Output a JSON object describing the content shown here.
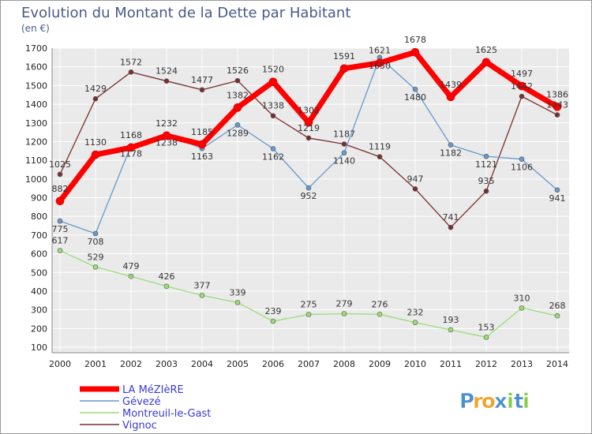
{
  "chart_data": {
    "type": "line",
    "title": "Evolution du Montant de la Dette par Habitant",
    "subtitle": "(en €)",
    "xlabel": "",
    "ylabel": "",
    "x": [
      2000,
      2001,
      2002,
      2003,
      2004,
      2005,
      2006,
      2007,
      2008,
      2009,
      2010,
      2011,
      2012,
      2013,
      2014
    ],
    "ylim": [
      100,
      1700
    ],
    "yticks": [
      100,
      200,
      300,
      400,
      500,
      600,
      700,
      800,
      900,
      1000,
      1100,
      1200,
      1300,
      1400,
      1500,
      1600,
      1700
    ],
    "grid": true,
    "legend_position": "bottom-left",
    "series": [
      {
        "name": "Vignoc",
        "color": "#7a2e2e",
        "values": [
          1025,
          1429,
          1572,
          1524,
          1477,
          1526,
          1338,
          1219,
          1187,
          1119,
          947,
          741,
          935,
          1442,
          1343
        ]
      },
      {
        "name": "Montreuil-le-Gast",
        "color": "#99dd77",
        "values": [
          617,
          529,
          479,
          426,
          377,
          339,
          239,
          275,
          279,
          276,
          232,
          193,
          153,
          310,
          268
        ]
      },
      {
        "name": "Gévezé",
        "color": "#6699cc",
        "values": [
          775,
          708,
          1178,
          1238,
          1163,
          1289,
          1162,
          952,
          1140,
          1650,
          1480,
          1182,
          1121,
          1106,
          941
        ]
      },
      {
        "name": "LA MéZIèRE",
        "color": "#ff0000",
        "values": [
          882,
          1130,
          1168,
          1232,
          1185,
          1382,
          1520,
          1302,
          1591,
          1621,
          1678,
          1439,
          1625,
          1497,
          1386
        ]
      }
    ],
    "data_labels": {
      "Vignoc": [
        "1025",
        "1429",
        "1572",
        "1524",
        "1477",
        "1526",
        "1338",
        "1219",
        "1187",
        "1119",
        "947",
        "741",
        "935",
        "1442",
        "1343"
      ],
      "Montreuil-le-Gast": [
        "617",
        "529",
        "479",
        "426",
        "377",
        "339",
        "239",
        "275",
        "279",
        "276",
        "232",
        "193",
        "153",
        "310",
        "268"
      ],
      "Gévezé": [
        "775",
        "708",
        "1178",
        "1238",
        "1163",
        "1289",
        "1162",
        "952",
        "1140",
        "1650",
        "1480",
        "1182",
        "1121",
        "1106",
        "941"
      ],
      "LA MéZIèRE": [
        "882",
        "1130",
        "1168",
        "1232",
        "1185",
        "1382",
        "1520",
        "1302",
        "1591",
        "1621",
        "1678",
        "1439",
        "1625",
        "1497",
        "1386"
      ]
    }
  },
  "legend": [
    {
      "name": "LA MéZIèRE",
      "color": "#ff0000"
    },
    {
      "name": "Gévezé",
      "color": "#6699cc"
    },
    {
      "name": "Montreuil-le-Gast",
      "color": "#99dd77"
    },
    {
      "name": "Vignoc",
      "color": "#7a2e2e"
    }
  ],
  "logo": {
    "letters": [
      "P",
      "r",
      "o",
      "x",
      "i",
      "t",
      "i"
    ],
    "colors": [
      "#4a8fd0",
      "#f4a020",
      "#f4a020",
      "#4a8fd0",
      "#88cc44",
      "#4a8fd0",
      "#88cc44"
    ]
  },
  "style": {
    "title_color": "#4a5a8a",
    "background": "#ffffff",
    "plot_background": "#eaeaea",
    "grid_color": "#ffffff",
    "border_color": "#999999"
  }
}
